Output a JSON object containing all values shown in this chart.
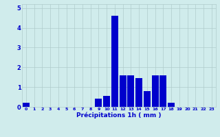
{
  "hours": [
    0,
    1,
    2,
    3,
    4,
    5,
    6,
    7,
    8,
    9,
    10,
    11,
    12,
    13,
    14,
    15,
    16,
    17,
    18,
    19,
    20,
    21,
    22,
    23
  ],
  "values": [
    0.2,
    0.0,
    0.0,
    0.0,
    0.0,
    0.0,
    0.0,
    0.0,
    0.0,
    0.4,
    0.55,
    4.6,
    1.6,
    1.6,
    1.45,
    0.8,
    1.6,
    1.6,
    0.2,
    0.0,
    0.0,
    0.0,
    0.0,
    0.0
  ],
  "bar_color": "#0000cc",
  "background_color": "#d0ecec",
  "grid_color": "#b0cccc",
  "xlabel": "Précipitations 1h ( mm )",
  "xlabel_color": "#0000cc",
  "tick_color": "#0000cc",
  "ylim": [
    0,
    5.2
  ],
  "yticks": [
    0,
    1,
    2,
    3,
    4,
    5
  ],
  "figwidth": 3.2,
  "figheight": 2.0,
  "dpi": 100
}
